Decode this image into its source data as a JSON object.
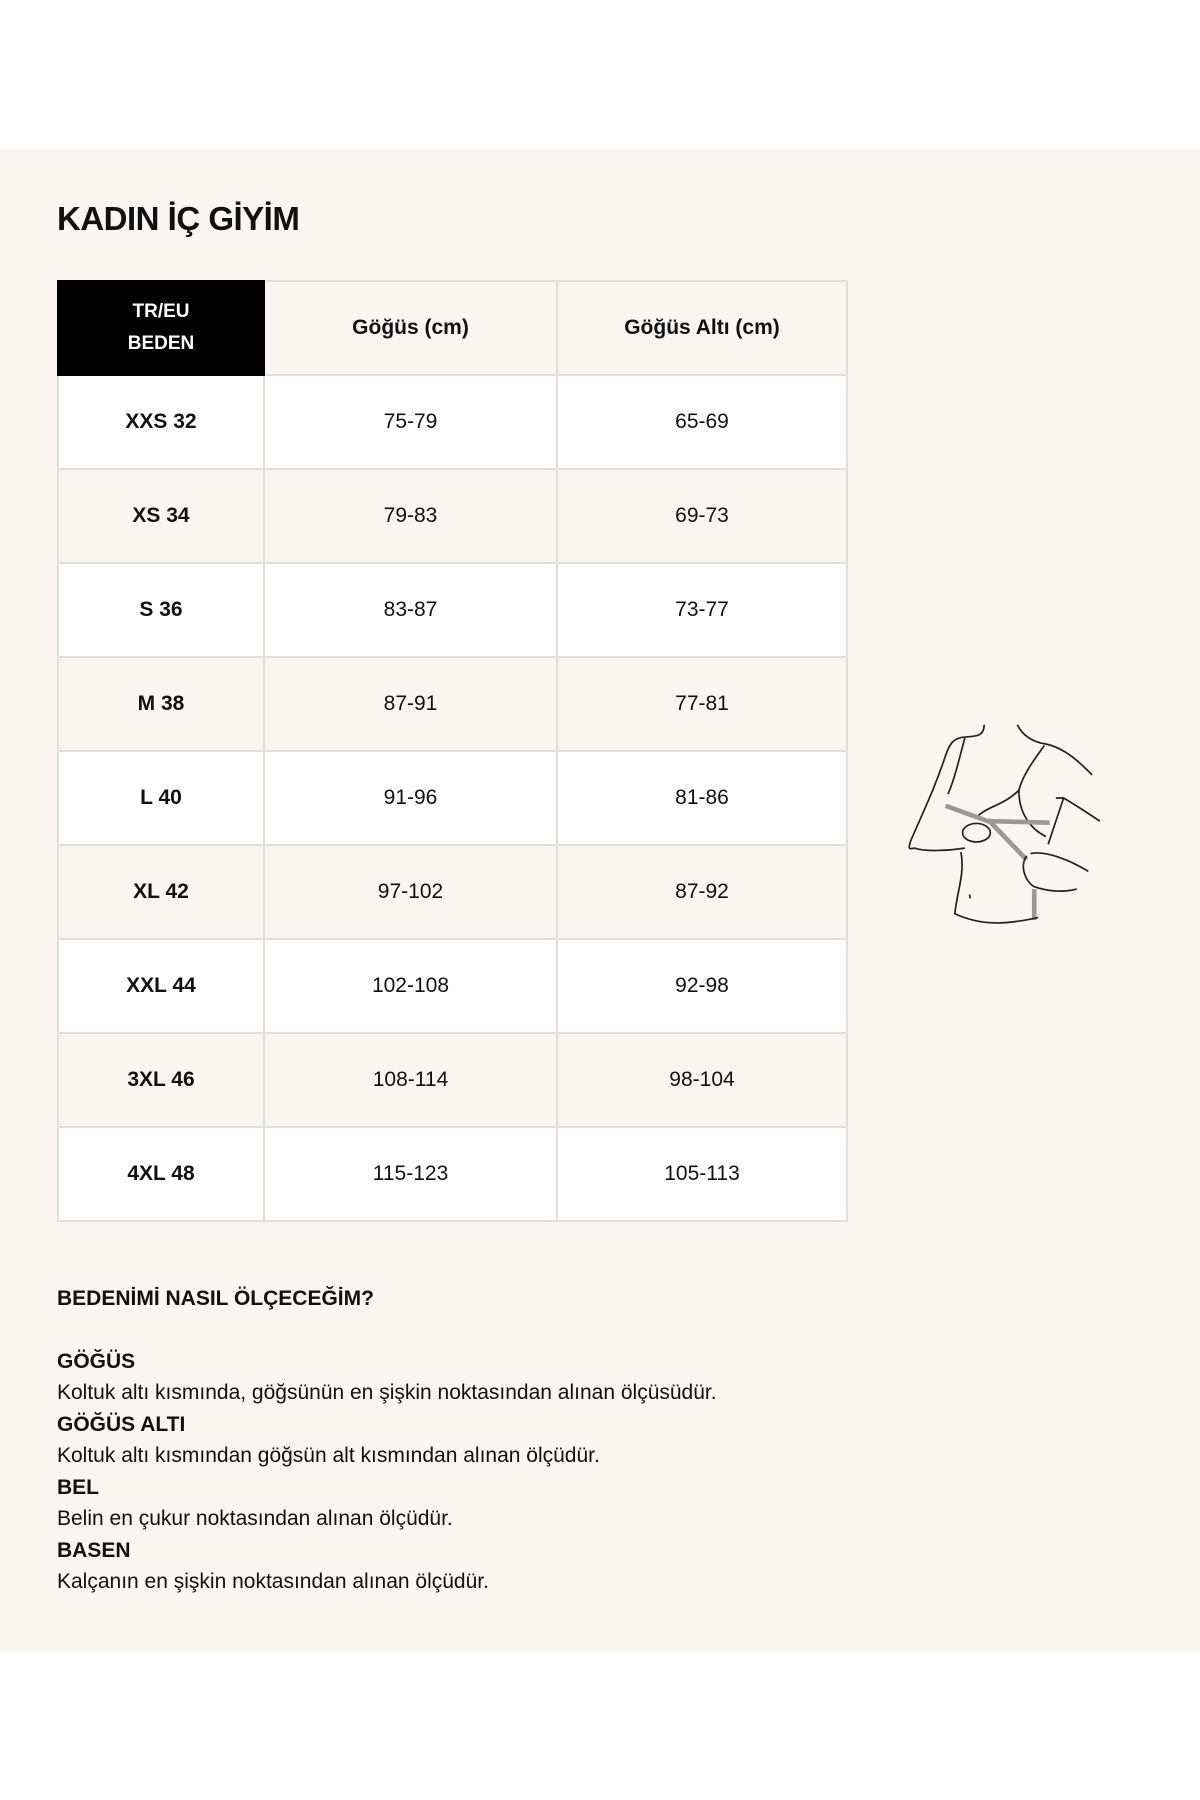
{
  "title": "KADIN İÇ GİYİM",
  "table": {
    "headers": [
      "TR/EU",
      "BEDEN",
      "Göğüs (cm)",
      "Göğüs Altı (cm)"
    ],
    "rows": [
      [
        "XXS 32",
        "75-79",
        "65-69"
      ],
      [
        "XS 34",
        "79-83",
        "69-73"
      ],
      [
        "S 36",
        "83-87",
        "73-77"
      ],
      [
        "M 38",
        "87-91",
        "77-81"
      ],
      [
        "L 40",
        "91-96",
        "81-86"
      ],
      [
        "XL 42",
        "97-102",
        "87-92"
      ],
      [
        "XXL 44",
        "102-108",
        "92-98"
      ],
      [
        "3XL 46",
        "108-114",
        "98-104"
      ],
      [
        "4XL 48",
        "115-123",
        "105-113"
      ]
    ]
  },
  "illustration": "bust-measurement-illustration",
  "guide": {
    "question": "BEDENİMİ NASIL ÖLÇECEĞİM?",
    "items": [
      {
        "heading": "GÖĞÜS",
        "text": "Koltuk altı kısmında, göğsünün en şişkin noktasından alınan ölçüsüdür."
      },
      {
        "heading": "GÖĞÜS ALTI",
        "text": "Koltuk altı kısmından göğsün alt kısmından alınan ölçüdür."
      },
      {
        "heading": "BEL",
        "text": "Belin en çukur noktasından alınan ölçüdür."
      },
      {
        "heading": "BASEN",
        "text": "Kalçanın en şişkin noktasından alınan ölçüdür."
      }
    ]
  },
  "colors": {
    "background": "#f9f5f0",
    "header_black": "#000000",
    "border": "#e3ded8"
  }
}
